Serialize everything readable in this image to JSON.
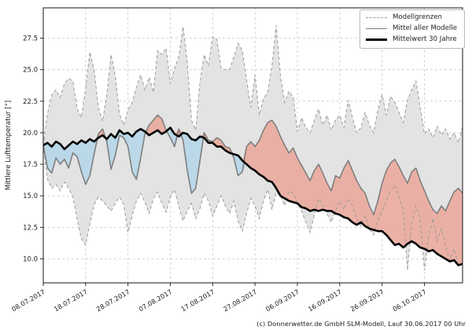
{
  "caption": "(c) Donnerwetter.de GmbH SLM-Modell, Lauf 30.06.2017 00 Uhr",
  "chart_data": {
    "type": "line",
    "title": "",
    "xlabel": "",
    "ylabel": "Mittlere Lufttemperatur [°]",
    "ylim": [
      8.1,
      29.9
    ],
    "grid": true,
    "legend_position": "upper right",
    "legend": [
      "Modellgrenzen",
      "Mittel aller Modelle",
      "Mittelwert 30 Jahre"
    ],
    "y_ticks": [
      27.5,
      25.0,
      22.5,
      20.0,
      17.5,
      15.0,
      12.5,
      10.0
    ],
    "y_tick_labels": [
      "27.5",
      "25.0",
      "22.5",
      "20.0",
      "17.5",
      "15.0",
      "12.5",
      "10.0"
    ],
    "x_start_date": "08.07.2017",
    "n_days": 100,
    "x_tick_days": [
      0,
      10,
      20,
      30,
      40,
      50,
      60,
      70,
      80,
      90
    ],
    "x_tick_labels": [
      "08.07.2017",
      "18.07.2017",
      "28.07.2017",
      "07.08.2017",
      "17.08.2017",
      "27.08.2017",
      "06.09.2017",
      "16.09.2017",
      "26.09.2017",
      "06.10.2017"
    ],
    "colors": {
      "band_fill": "#e3e3e3",
      "boundary_line": "#9a9a9a",
      "mean_line": "#7f7f7f",
      "climate_line": "#000000",
      "warm_fill": "#eaa89c",
      "cool_fill": "#b7d7e8",
      "grid": "#c9c9c9",
      "spine": "#2b2b2b"
    },
    "series": [
      {
        "name": "Modellgrenzen (oberes Limit)",
        "style": "dashed",
        "values": [
          19.0,
          21.5,
          23.0,
          23.4,
          22.8,
          23.9,
          24.3,
          24.1,
          21.9,
          21.2,
          23.5,
          26.4,
          25.0,
          22.0,
          20.9,
          23.0,
          26.2,
          24.5,
          21.5,
          20.6,
          21.8,
          22.4,
          23.6,
          24.6,
          23.4,
          24.4,
          23.2,
          26.5,
          26.2,
          26.7,
          23.9,
          25.1,
          26.0,
          28.4,
          25.6,
          21.0,
          20.2,
          24.0,
          26.2,
          25.3,
          27.6,
          27.4,
          25.1,
          25.0,
          25.0,
          26.0,
          27.1,
          26.5,
          24.2,
          22.0,
          24.6,
          21.4,
          22.7,
          23.2,
          25.3,
          28.5,
          24.5,
          22.4,
          23.3,
          22.8,
          20.1,
          21.2,
          20.4,
          20.0,
          21.0,
          21.9,
          20.6,
          21.4,
          20.2,
          21.0,
          21.4,
          20.4,
          22.6,
          21.2,
          20.0,
          20.4,
          21.6,
          20.6,
          20.0,
          21.8,
          23.0,
          21.4,
          22.9,
          22.4,
          21.6,
          20.8,
          22.6,
          23.4,
          24.1,
          22.0,
          19.9,
          20.3,
          19.6,
          20.5,
          19.8,
          20.3,
          19.5,
          20.0,
          19.2,
          20.5
        ]
      },
      {
        "name": "Modellgrenzen (unteres Limit)",
        "style": "dashed",
        "values": [
          19.0,
          16.3,
          15.6,
          15.9,
          15.4,
          16.1,
          15.6,
          14.9,
          13.2,
          11.6,
          11.1,
          12.8,
          14.3,
          14.9,
          14.6,
          14.2,
          13.8,
          14.4,
          14.9,
          14.3,
          12.1,
          13.4,
          14.6,
          15.2,
          14.5,
          13.6,
          14.8,
          15.3,
          14.4,
          13.7,
          14.9,
          15.5,
          14.2,
          13.0,
          13.8,
          14.4,
          13.2,
          14.0,
          15.2,
          14.6,
          13.4,
          14.2,
          15.0,
          14.2,
          13.6,
          14.6,
          13.0,
          12.2,
          13.6,
          14.8,
          14.2,
          13.2,
          14.6,
          15.5,
          13.9,
          15.3,
          15.0,
          14.2,
          15.4,
          15.2,
          14.4,
          13.8,
          12.9,
          12.1,
          13.5,
          14.8,
          14.2,
          13.6,
          12.9,
          13.8,
          14.6,
          13.9,
          14.8,
          14.2,
          13.2,
          12.6,
          13.4,
          12.4,
          11.9,
          13.0,
          13.8,
          14.6,
          15.4,
          15.8,
          14.9,
          13.8,
          9.1,
          12.8,
          14.2,
          13.0,
          9.1,
          11.8,
          13.2,
          11.4,
          12.4,
          11.0,
          9.9,
          10.8,
          9.4,
          9.8
        ]
      },
      {
        "name": "Mittel aller Modelle",
        "style": "solid-gray",
        "values": [
          19.0,
          17.2,
          16.8,
          18.0,
          17.5,
          17.9,
          17.2,
          18.4,
          18.1,
          16.9,
          15.9,
          16.6,
          18.3,
          19.9,
          20.3,
          19.3,
          17.1,
          18.2,
          19.8,
          19.6,
          18.9,
          16.9,
          16.3,
          18.0,
          19.9,
          20.6,
          21.0,
          21.4,
          21.1,
          20.2,
          19.6,
          18.9,
          20.3,
          19.4,
          17.0,
          15.2,
          15.6,
          17.8,
          20.0,
          19.4,
          19.3,
          19.6,
          19.4,
          18.9,
          18.8,
          18.0,
          16.6,
          16.9,
          18.9,
          19.3,
          18.9,
          19.4,
          20.2,
          20.8,
          21.0,
          20.5,
          19.7,
          19.0,
          18.4,
          18.8,
          18.0,
          17.4,
          16.8,
          16.2,
          17.0,
          17.5,
          16.8,
          16.0,
          15.4,
          16.6,
          16.4,
          17.2,
          17.8,
          17.0,
          16.2,
          15.6,
          15.2,
          14.2,
          13.5,
          14.6,
          16.0,
          17.0,
          17.6,
          17.9,
          17.3,
          16.6,
          16.0,
          16.9,
          17.2,
          16.2,
          15.4,
          14.6,
          13.9,
          13.6,
          14.2,
          13.8,
          14.6,
          15.3,
          15.6,
          15.2
        ]
      },
      {
        "name": "Mittelwert 30 Jahre",
        "style": "solid-black",
        "values": [
          19.0,
          19.2,
          18.9,
          19.3,
          19.1,
          18.7,
          19.0,
          19.3,
          19.1,
          19.4,
          19.2,
          19.5,
          19.3,
          19.6,
          19.8,
          19.5,
          19.9,
          19.6,
          20.2,
          19.9,
          20.0,
          19.7,
          20.1,
          20.3,
          20.1,
          19.8,
          20.0,
          20.2,
          19.9,
          20.1,
          20.4,
          19.9,
          19.7,
          20.0,
          19.9,
          19.5,
          19.4,
          19.7,
          19.6,
          19.2,
          19.2,
          18.9,
          18.9,
          18.6,
          18.4,
          18.3,
          18.2,
          17.8,
          17.5,
          17.2,
          17.0,
          16.7,
          16.5,
          16.2,
          16.1,
          15.6,
          15.0,
          14.8,
          14.6,
          14.5,
          14.4,
          14.1,
          14.0,
          13.8,
          13.9,
          13.8,
          13.9,
          13.8,
          13.8,
          13.6,
          13.5,
          13.3,
          13.2,
          12.9,
          12.7,
          12.9,
          12.6,
          12.4,
          12.3,
          12.2,
          12.2,
          11.9,
          11.5,
          11.1,
          11.2,
          10.9,
          11.2,
          11.4,
          11.2,
          10.9,
          10.8,
          10.6,
          10.7,
          10.4,
          10.2,
          10.0,
          9.8,
          9.9,
          9.5,
          9.6
        ]
      }
    ],
    "fills": {
      "band": "between upper and lower model boundary",
      "warm": "model mean above 30-year mean",
      "cool": "model mean below 30-year mean"
    }
  }
}
